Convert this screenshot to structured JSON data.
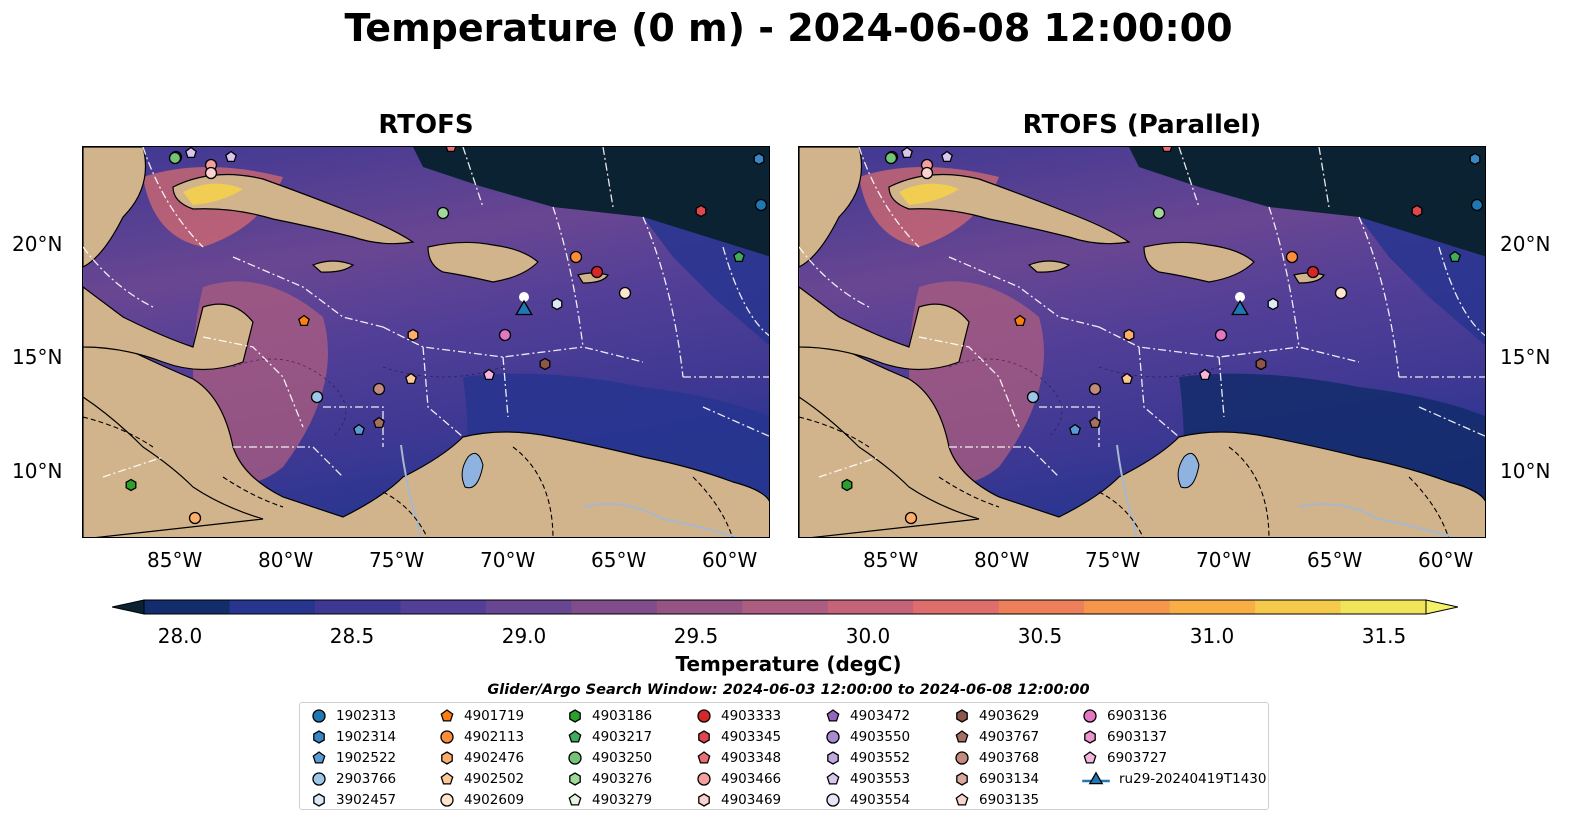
{
  "title": "Temperature (0 m) - 2024-06-08 12:00:00",
  "panels": [
    {
      "title": "RTOFS"
    },
    {
      "title": "RTOFS (Parallel)"
    }
  ],
  "map_axes": {
    "lon_ticks": [
      "85°W",
      "80°W",
      "75°W",
      "70°W",
      "65°W",
      "60°W"
    ],
    "lat_ticks": [
      "20°N",
      "15°N",
      "10°N"
    ]
  },
  "colorbar": {
    "label": "Temperature (degC)",
    "ticks": [
      "28.0",
      "28.5",
      "29.0",
      "29.5",
      "30.0",
      "30.5",
      "31.0",
      "31.5"
    ],
    "colors": [
      "#0b2232",
      "#132c6b",
      "#27358f",
      "#3e3893",
      "#533f97",
      "#694692",
      "#7f4d8a",
      "#955484",
      "#ad5d7f",
      "#c56378",
      "#de6e6c",
      "#ee7f5b",
      "#f6964a",
      "#f8ad45",
      "#f5c94c",
      "#f0e45b",
      "#f3f26a"
    ]
  },
  "search_window": "Glider/Argo Search Window: 2024-06-03 12:00:00 to 2024-06-08 12:00:00",
  "legend": {
    "columns": [
      [
        {
          "label": "1902313",
          "marker": "circle",
          "color": "#1f77b4"
        },
        {
          "label": "1902314",
          "marker": "hexagon",
          "color": "#3a86c4"
        },
        {
          "label": "1902522",
          "marker": "pentagon",
          "color": "#5b9bd5"
        },
        {
          "label": "2903766",
          "marker": "circle",
          "color": "#9cc7e8"
        },
        {
          "label": "3902457",
          "marker": "hexagon",
          "color": "#dbe9f6"
        }
      ],
      [
        {
          "label": "4901719",
          "marker": "pentagon",
          "color": "#ff7f0e"
        },
        {
          "label": "4902113",
          "marker": "circle",
          "color": "#fd8d3c"
        },
        {
          "label": "4902476",
          "marker": "hexagon",
          "color": "#fdae6b"
        },
        {
          "label": "4902502",
          "marker": "pentagon",
          "color": "#fdc897"
        },
        {
          "label": "4902609",
          "marker": "circle",
          "color": "#fee6ce"
        }
      ],
      [
        {
          "label": "4903186",
          "marker": "hexagon",
          "color": "#2ca02c"
        },
        {
          "label": "4903217",
          "marker": "pentagon",
          "color": "#41ab5d"
        },
        {
          "label": "4903250",
          "marker": "circle",
          "color": "#74c476"
        },
        {
          "label": "4903276",
          "marker": "hexagon",
          "color": "#a1d99b"
        },
        {
          "label": "4903279",
          "marker": "pentagon",
          "color": "#e5f5e0"
        }
      ],
      [
        {
          "label": "4903333",
          "marker": "circle",
          "color": "#d62728"
        },
        {
          "label": "4903345",
          "marker": "hexagon",
          "color": "#e0474c"
        },
        {
          "label": "4903348",
          "marker": "pentagon",
          "color": "#ec6e70"
        },
        {
          "label": "4903466",
          "marker": "circle",
          "color": "#f4a09f"
        },
        {
          "label": "4903469",
          "marker": "hexagon",
          "color": "#fbd2d1"
        }
      ],
      [
        {
          "label": "4903472",
          "marker": "pentagon",
          "color": "#9467bd"
        },
        {
          "label": "4903550",
          "marker": "circle",
          "color": "#a98ad0"
        },
        {
          "label": "4903552",
          "marker": "hexagon",
          "color": "#c0a8e0"
        },
        {
          "label": "4903553",
          "marker": "pentagon",
          "color": "#d8c6ef"
        },
        {
          "label": "4903554",
          "marker": "circle",
          "color": "#ece2f8"
        }
      ],
      [
        {
          "label": "4903629",
          "marker": "hexagon",
          "color": "#8c564b"
        },
        {
          "label": "4903767",
          "marker": "pentagon",
          "color": "#a57060"
        },
        {
          "label": "4903768",
          "marker": "circle",
          "color": "#c28b7e"
        },
        {
          "label": "6903134",
          "marker": "hexagon",
          "color": "#dba99c"
        },
        {
          "label": "6903135",
          "marker": "pentagon",
          "color": "#f5d6c8"
        }
      ],
      [
        {
          "label": "6903136",
          "marker": "circle",
          "color": "#e377c2"
        },
        {
          "label": "6903137",
          "marker": "hexagon",
          "color": "#ec94d0"
        },
        {
          "label": "6903727",
          "marker": "pentagon",
          "color": "#f5b5e0"
        },
        {
          "label": "ru29-20240419T1430",
          "marker": "triangle-line",
          "color": "#1f77b4"
        }
      ]
    ]
  }
}
